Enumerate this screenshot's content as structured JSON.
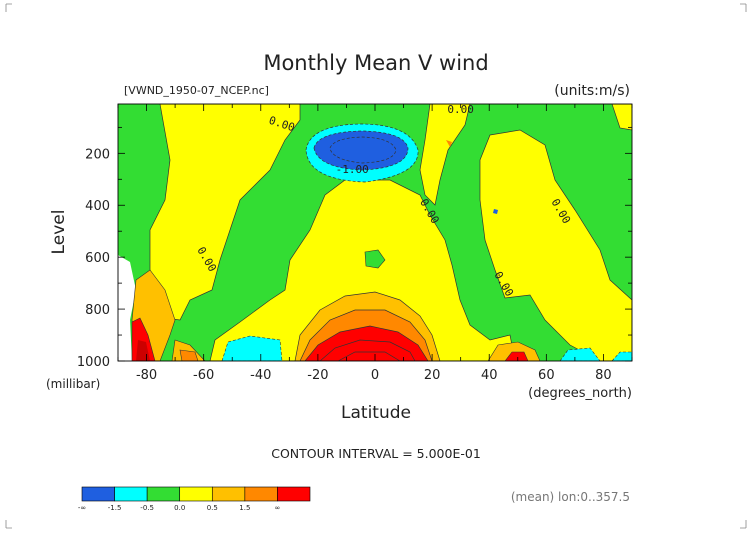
{
  "title": "Monthly Mean V wind",
  "dataset": "[VWND_1950-07_NCEP.nc]",
  "units": "(units:m/s)",
  "contour_interval": "CONTOUR INTERVAL = 5.000E-01",
  "footer_note": "(mean) lon:0..357.5",
  "chart_data": {
    "type": "heatmap",
    "title": "Monthly Mean V wind",
    "xlabel": "Latitude",
    "xunit": "(degrees_north)",
    "ylabel": "Level",
    "yunit": "(millibar)",
    "xlim": [
      -90,
      90
    ],
    "ylim": [
      1000,
      10
    ],
    "x_ticks": [
      -80,
      -60,
      -40,
      -20,
      0,
      20,
      40,
      60,
      80
    ],
    "x_tick_labels": [
      "-80",
      "-60",
      "-40",
      "-20",
      "0",
      "20",
      "40",
      "60",
      "80"
    ],
    "y_ticks": [
      200,
      400,
      600,
      800,
      1000
    ],
    "y_tick_labels": [
      "200",
      "400",
      "600",
      "800",
      "1000"
    ],
    "contour_labels": [
      {
        "text": "0.00",
        "x": -33,
        "y": 100
      },
      {
        "text": "0.00",
        "x": 30,
        "y": 45
      },
      {
        "text": "-1.00",
        "x": -8,
        "y": 275
      },
      {
        "text": "0.00",
        "x": 18,
        "y": 430
      },
      {
        "text": "0.00",
        "x": -60,
        "y": 615
      },
      {
        "text": "0.00",
        "x": 64,
        "y": 430
      },
      {
        "text": "0.00",
        "x": 44,
        "y": 710
      }
    ],
    "legend": {
      "colors": [
        "#1f5fe0",
        "#00ffff",
        "#33dd33",
        "#ffff00",
        "#ffc000",
        "#ff8800",
        "#ff0000"
      ],
      "labels": [
        "-∞",
        "-1.5",
        "-0.5",
        "0.0",
        "0.5",
        "1.5",
        "∞"
      ]
    }
  }
}
